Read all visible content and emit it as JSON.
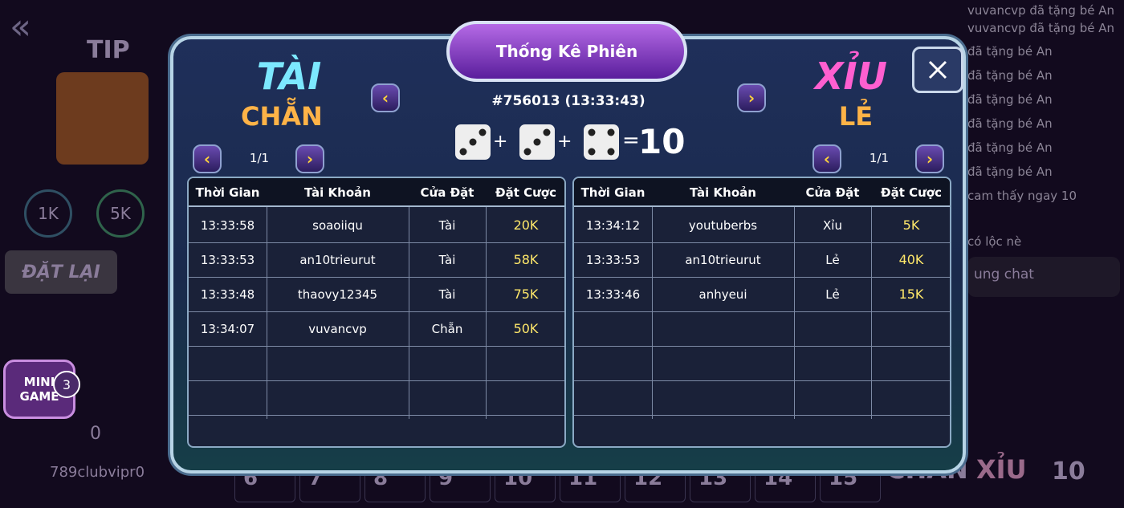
{
  "header": {
    "title": "Thống Kê Phiên",
    "session": "#756013 (13:33:43)"
  },
  "result": {
    "dice": [
      3,
      3,
      4
    ],
    "plus": "+",
    "equals": "=",
    "total": "10"
  },
  "left": {
    "labels": [
      "TÀI",
      "CHẴN"
    ],
    "page": "1/1",
    "columns": [
      "Thời Gian",
      "Tài Khoản",
      "Cửa Đặt",
      "Đặt Cược"
    ],
    "rows": [
      [
        "13:33:58",
        "soaoiiqu",
        "Tài",
        "20K"
      ],
      [
        "13:33:53",
        "an10trieurut",
        "Tài",
        "58K"
      ],
      [
        "13:33:48",
        "thaovy12345",
        "Tài",
        "75K"
      ],
      [
        "13:34:07",
        "vuvancvp",
        "Chẵn",
        "50K"
      ]
    ]
  },
  "right": {
    "labels": [
      "XỈU",
      "LẺ"
    ],
    "page": "1/1",
    "columns": [
      "Thời Gian",
      "Tài Khoản",
      "Cửa Đặt",
      "Đặt Cược"
    ],
    "rows": [
      [
        "13:34:12",
        "youtuberbs",
        "Xỉu",
        "5K"
      ],
      [
        "13:33:53",
        "an10trieurut",
        "Lẻ",
        "40K"
      ],
      [
        "13:33:46",
        "anhyeui",
        "Lẻ",
        "15K"
      ]
    ]
  },
  "background": {
    "tip": "TIP",
    "chips": [
      "1K",
      "5K"
    ],
    "reset": "ĐẶT LẠI",
    "mini_game": "MINI GAME",
    "mini_badge": "3",
    "balance": "0",
    "username": "789clubvipr0",
    "chat": [
      "vuvancvp đã tặng bé An",
      "vuvancvp đã tặng bé An",
      "đã tặng bé An",
      "đã tặng bé An",
      "đã tặng bé An",
      "đã tặng bé An",
      "đã tặng bé An",
      "đã tặng bé An",
      "cam thấy ngay 10",
      "có lộc nè"
    ],
    "chat_input": "ung chat",
    "history": [
      "6",
      "7",
      "8",
      "9",
      "10",
      "11",
      "12",
      "13",
      "14",
      "15"
    ],
    "bottom": [
      "CHẴN",
      "XỈU",
      "10"
    ]
  }
}
